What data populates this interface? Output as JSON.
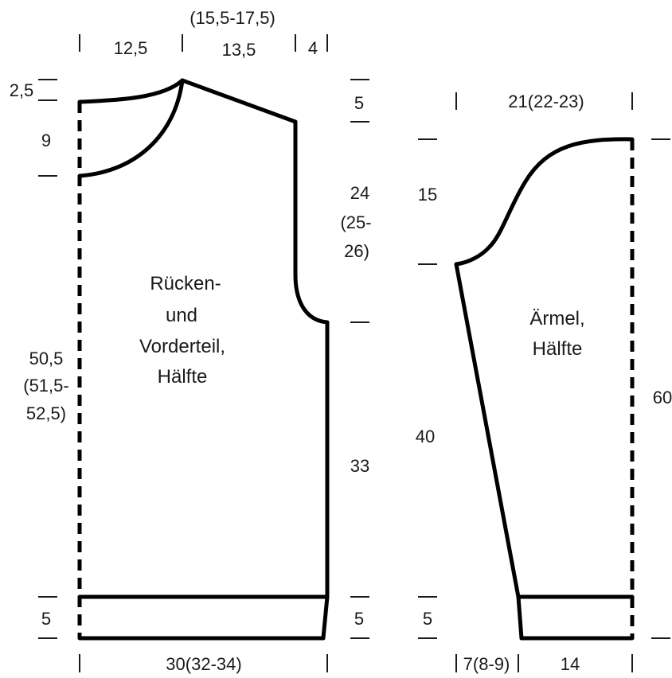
{
  "body_piece": {
    "name_lines": [
      "Rücken-",
      "und",
      "Vorderteil,",
      "Hälfte"
    ],
    "dims": {
      "neck_total": "(15,5-17,5)",
      "half_neck": "12,5",
      "shoulder": "13,5",
      "edge": "4",
      "neck_drop_top": "2,5",
      "neck_depth": "9",
      "shoulder_slope": "5",
      "armhole_lines": [
        "24",
        "(25-",
        "26)"
      ],
      "body_length_lines": [
        "50,5",
        "(51,5-",
        "52,5)"
      ],
      "side_length": "33",
      "rib_left": "5",
      "rib_right": "5",
      "width": "30(32-34)"
    }
  },
  "sleeve_piece": {
    "name_lines": [
      "Ärmel,",
      "Hälfte"
    ],
    "dims": {
      "top_width": "21(22-23)",
      "cap_height": "15",
      "length": "60",
      "lower_length": "40",
      "rib": "5",
      "cuff_offset": "7(8-9)",
      "cuff_width": "14"
    }
  }
}
